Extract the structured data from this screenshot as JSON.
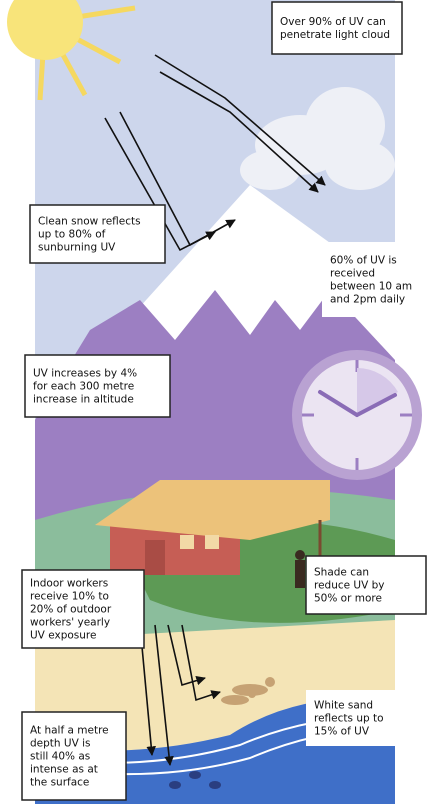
{
  "callouts": [
    {
      "lines": [
        "Over 90% of UV can",
        "penetrate light cloud"
      ]
    },
    {
      "lines": [
        "Clean snow reflects",
        "up to 80% of",
        "sunburning UV"
      ]
    },
    {
      "lines": [
        "60% of UV is",
        "received",
        "between 10 am",
        "and 2pm daily"
      ]
    },
    {
      "lines": [
        "UV increases by 4%",
        "for each 300 metre",
        "increase in altitude"
      ]
    },
    {
      "lines": [
        "Indoor workers",
        "receive 10% to",
        "20% of outdoor",
        "workers' yearly",
        "UV exposure"
      ]
    },
    {
      "lines": [
        "Shade can",
        "reduce UV by",
        "50% or more"
      ]
    },
    {
      "lines": [
        "White sand",
        "reflects up to",
        "15% of UV"
      ]
    },
    {
      "lines": [
        "At half a metre",
        "depth UV is",
        "still 40% as",
        "intense as at",
        "the surface"
      ]
    }
  ]
}
